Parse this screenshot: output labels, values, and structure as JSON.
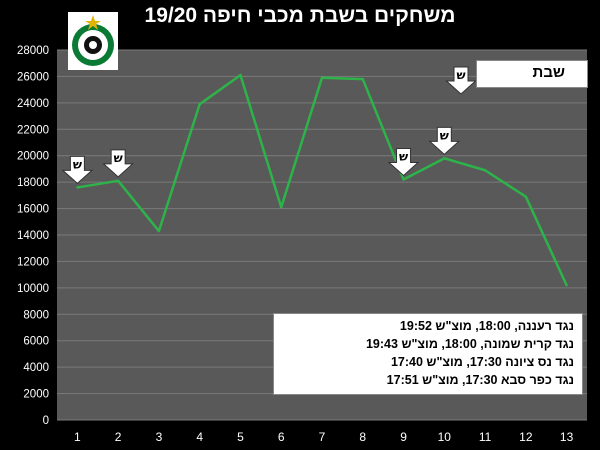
{
  "title": "משחקים בשבת מכבי חיפה 19/20",
  "legend": {
    "label": "שבת",
    "marker_text": "ש",
    "line_color": "#2db34a"
  },
  "logo": {
    "icon": "maccabi-haifa-logo-icon"
  },
  "notes": [
    "נגד רעננה, 18:00, מוצ\"ש 19:52",
    "נגד קרית שמונה, 18:00, מוצ\"ש 19:43",
    "נגד נס ציונה 17:30, מוצ\"ש 17:40",
    "נגד כפר סבא 17:30, מוצ\"ש 17:51"
  ],
  "chart_data": {
    "type": "line",
    "title": "משחקים בשבת מכבי חיפה 19/20",
    "x": [
      1,
      2,
      3,
      4,
      5,
      6,
      7,
      8,
      9,
      10,
      11,
      12,
      13
    ],
    "series": [
      {
        "values": [
          17600,
          18100,
          14300,
          23900,
          26100,
          16100,
          25900,
          25800,
          18200,
          19800,
          18900,
          16900,
          10200
        ],
        "color": "#2db34a"
      }
    ],
    "shabbat_markers": [
      1,
      2,
      9,
      10
    ],
    "ylim": [
      0,
      28000
    ],
    "yticks": [
      0,
      2000,
      4000,
      6000,
      8000,
      10000,
      12000,
      14000,
      16000,
      18000,
      20000,
      22000,
      24000,
      26000,
      28000
    ],
    "grid": true,
    "background": "#595959",
    "legend_position": "top-right"
  }
}
